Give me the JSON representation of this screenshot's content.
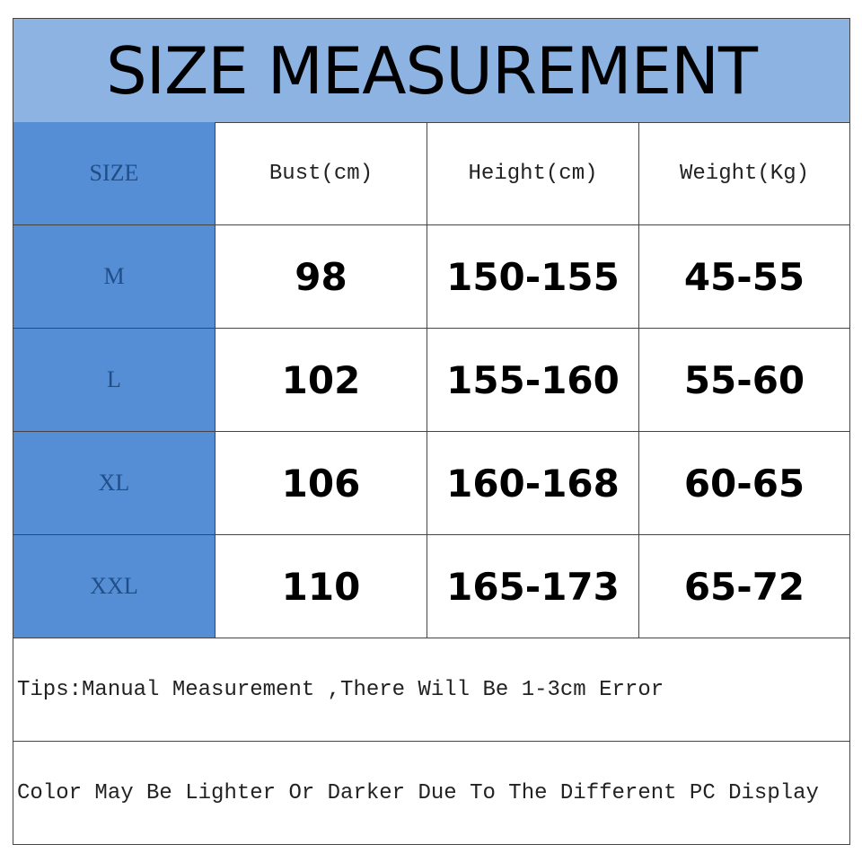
{
  "title": "SIZE MEASUREMENT",
  "colors": {
    "title_bg": "#8db3e2",
    "size_column_bg": "#558ed5",
    "size_text": "#1f4e88"
  },
  "headers": [
    "SIZE",
    "Bust(cm)",
    "Height(cm)",
    "Weight(Kg)"
  ],
  "rows": [
    {
      "size": "M",
      "bust": "98",
      "height": "150-155",
      "weight": "45-55"
    },
    {
      "size": "L",
      "bust": "102",
      "height": "155-160",
      "weight": "55-60"
    },
    {
      "size": "XL",
      "bust": "106",
      "height": "160-168",
      "weight": "60-65"
    },
    {
      "size": "XXL",
      "bust": "110",
      "height": "165-173",
      "weight": "65-72"
    }
  ],
  "notes": [
    "Tips:Manual Measurement ,There Will Be 1-3cm Error",
    "Color May Be Lighter Or Darker Due To The Different PC Display"
  ]
}
